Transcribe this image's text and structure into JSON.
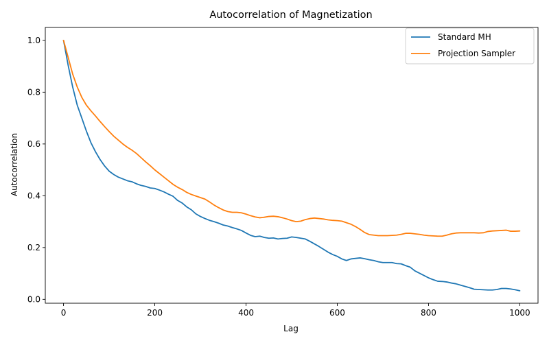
{
  "chart_data": {
    "type": "line",
    "title": "Autocorrelation of Magnetization",
    "xlabel": "Lag",
    "ylabel": "Autocorrelation",
    "xlim": [
      -40,
      1040
    ],
    "ylim": [
      -0.015,
      1.05
    ],
    "xticks": [
      0,
      200,
      400,
      600,
      800,
      1000
    ],
    "yticks": [
      0.0,
      0.2,
      0.4,
      0.6,
      0.8,
      1.0
    ],
    "xtick_labels": [
      "0",
      "200",
      "400",
      "600",
      "800",
      "1000"
    ],
    "ytick_labels": [
      "0.0",
      "0.2",
      "0.4",
      "0.6",
      "0.8",
      "1.0"
    ],
    "grid": false,
    "legend_position": "upper right",
    "x": [
      0,
      10,
      20,
      30,
      40,
      50,
      60,
      70,
      80,
      90,
      100,
      110,
      120,
      130,
      140,
      150,
      160,
      170,
      180,
      190,
      200,
      210,
      220,
      230,
      240,
      250,
      260,
      270,
      280,
      290,
      300,
      310,
      320,
      330,
      340,
      350,
      360,
      370,
      380,
      390,
      400,
      410,
      420,
      430,
      440,
      450,
      460,
      470,
      480,
      490,
      500,
      510,
      520,
      530,
      540,
      550,
      560,
      570,
      580,
      590,
      600,
      610,
      620,
      630,
      640,
      650,
      660,
      670,
      680,
      690,
      700,
      710,
      720,
      730,
      740,
      750,
      760,
      770,
      780,
      790,
      800,
      810,
      820,
      830,
      840,
      850,
      860,
      870,
      880,
      890,
      900,
      910,
      920,
      930,
      940,
      950,
      960,
      970,
      980,
      990,
      1000
    ],
    "series": [
      {
        "name": "Standard MH",
        "color": "#1f77b4",
        "values": [
          1.0,
          0.905,
          0.82,
          0.75,
          0.7,
          0.65,
          0.605,
          0.57,
          0.54,
          0.515,
          0.495,
          0.482,
          0.472,
          0.465,
          0.458,
          0.454,
          0.446,
          0.44,
          0.436,
          0.43,
          0.428,
          0.422,
          0.415,
          0.406,
          0.398,
          0.382,
          0.372,
          0.357,
          0.346,
          0.33,
          0.32,
          0.312,
          0.305,
          0.3,
          0.294,
          0.287,
          0.283,
          0.277,
          0.272,
          0.266,
          0.256,
          0.247,
          0.242,
          0.244,
          0.239,
          0.236,
          0.237,
          0.233,
          0.235,
          0.236,
          0.241,
          0.239,
          0.236,
          0.233,
          0.224,
          0.214,
          0.204,
          0.193,
          0.182,
          0.173,
          0.166,
          0.156,
          0.15,
          0.156,
          0.158,
          0.16,
          0.157,
          0.153,
          0.15,
          0.145,
          0.142,
          0.142,
          0.142,
          0.138,
          0.137,
          0.13,
          0.124,
          0.11,
          0.101,
          0.092,
          0.083,
          0.076,
          0.07,
          0.069,
          0.067,
          0.063,
          0.06,
          0.055,
          0.05,
          0.045,
          0.039,
          0.038,
          0.037,
          0.036,
          0.036,
          0.038,
          0.042,
          0.042,
          0.04,
          0.037,
          0.033
        ]
      },
      {
        "name": "Projection Sampler",
        "color": "#ff7f0e",
        "values": [
          1.0,
          0.935,
          0.87,
          0.82,
          0.78,
          0.75,
          0.728,
          0.708,
          0.687,
          0.667,
          0.648,
          0.63,
          0.615,
          0.6,
          0.587,
          0.576,
          0.563,
          0.547,
          0.531,
          0.516,
          0.5,
          0.486,
          0.472,
          0.458,
          0.444,
          0.433,
          0.424,
          0.413,
          0.405,
          0.399,
          0.393,
          0.387,
          0.376,
          0.364,
          0.354,
          0.345,
          0.339,
          0.336,
          0.336,
          0.334,
          0.329,
          0.323,
          0.318,
          0.315,
          0.317,
          0.32,
          0.321,
          0.319,
          0.315,
          0.31,
          0.304,
          0.3,
          0.302,
          0.308,
          0.312,
          0.314,
          0.312,
          0.31,
          0.307,
          0.305,
          0.304,
          0.302,
          0.296,
          0.29,
          0.281,
          0.27,
          0.258,
          0.25,
          0.248,
          0.246,
          0.246,
          0.246,
          0.247,
          0.248,
          0.251,
          0.255,
          0.255,
          0.253,
          0.251,
          0.248,
          0.246,
          0.245,
          0.244,
          0.244,
          0.248,
          0.253,
          0.256,
          0.257,
          0.257,
          0.257,
          0.257,
          0.256,
          0.257,
          0.262,
          0.264,
          0.265,
          0.266,
          0.267,
          0.263,
          0.263,
          0.264
        ]
      }
    ]
  }
}
